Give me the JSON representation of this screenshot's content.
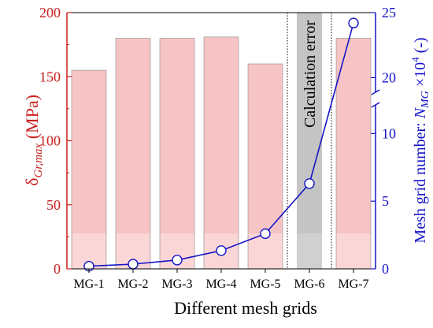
{
  "chart_data": {
    "type": "bar",
    "categories": [
      "MG-1",
      "MG-2",
      "MG-3",
      "MG-4",
      "MG-5",
      "MG-6",
      "MG-7"
    ],
    "xlabel": "Different mesh grids",
    "ylabel_left": {
      "symbol": "δ",
      "subscript": "Gr,max",
      "unit": " (MPa)"
    },
    "ylabel_right": {
      "prefix": "Mesh grid number: ",
      "symbol": "N",
      "subscript": "MG",
      "times": " ×10",
      "exponent": "4",
      "unit": " (-)"
    },
    "ylim_left": [
      0,
      200
    ],
    "yticks_left": [
      "0",
      "50",
      "100",
      "150",
      "200"
    ],
    "ylim_right": [
      0,
      25
    ],
    "yticks_right": [
      "0",
      "5",
      "10",
      "20",
      "25"
    ],
    "right_axis_break": {
      "lower": [
        0,
        12
      ],
      "upper": [
        19,
        25
      ]
    },
    "series": [
      {
        "axis": "left",
        "kind": "bar",
        "values": [
          155,
          180,
          180,
          181,
          160,
          null,
          180
        ],
        "color": "#f6c4c4"
      },
      {
        "axis": "right",
        "kind": "line",
        "values": [
          0.2,
          0.35,
          0.65,
          1.35,
          2.6,
          6.3,
          24.2
        ],
        "color": "#1414c8"
      }
    ],
    "annotation": {
      "text": "Calculation error",
      "category_index": 5,
      "color": "#c4c4c4"
    },
    "colors": {
      "left_axis": "#c8201e",
      "right_axis": "#1414c8",
      "bar_fill": "#f6c4c4",
      "bar_base": "#fbd6d6",
      "error_band": "#c4c4c4"
    }
  }
}
